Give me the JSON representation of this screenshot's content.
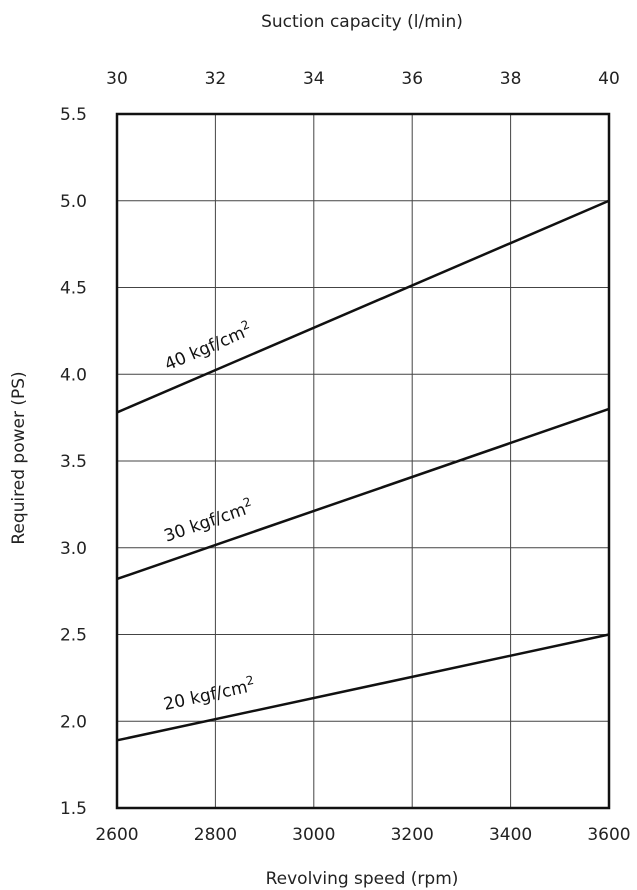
{
  "chart_data": {
    "type": "line",
    "x_bottom": {
      "label": "Revolving speed (rpm)",
      "range": [
        2600,
        3600
      ],
      "ticks": [
        2600,
        2800,
        3000,
        3200,
        3400,
        3600
      ]
    },
    "x_top": {
      "label": "Suction capacity (l/min)",
      "range": [
        30,
        40
      ],
      "ticks": [
        30,
        32,
        34,
        36,
        38,
        40
      ]
    },
    "y": {
      "label": "Required power (PS)",
      "range": [
        1.5,
        5.5
      ],
      "ticks": [
        "1.5",
        "2.0",
        "2.5",
        "3.0",
        "3.5",
        "4.0",
        "4.5",
        "5.0",
        "5.5"
      ]
    },
    "grid": true,
    "series": [
      {
        "label_main": "40 kgf/cm",
        "label_sup": "2",
        "x": [
          2600,
          3600
        ],
        "y": [
          3.78,
          5.0
        ]
      },
      {
        "label_main": "30 kgf/cm",
        "label_sup": "2",
        "x": [
          2600,
          3600
        ],
        "y": [
          2.82,
          3.8
        ]
      },
      {
        "label_main": "20 kgf/cm",
        "label_sup": "2",
        "x": [
          2600,
          3600
        ],
        "y": [
          1.89,
          2.5
        ]
      }
    ]
  }
}
